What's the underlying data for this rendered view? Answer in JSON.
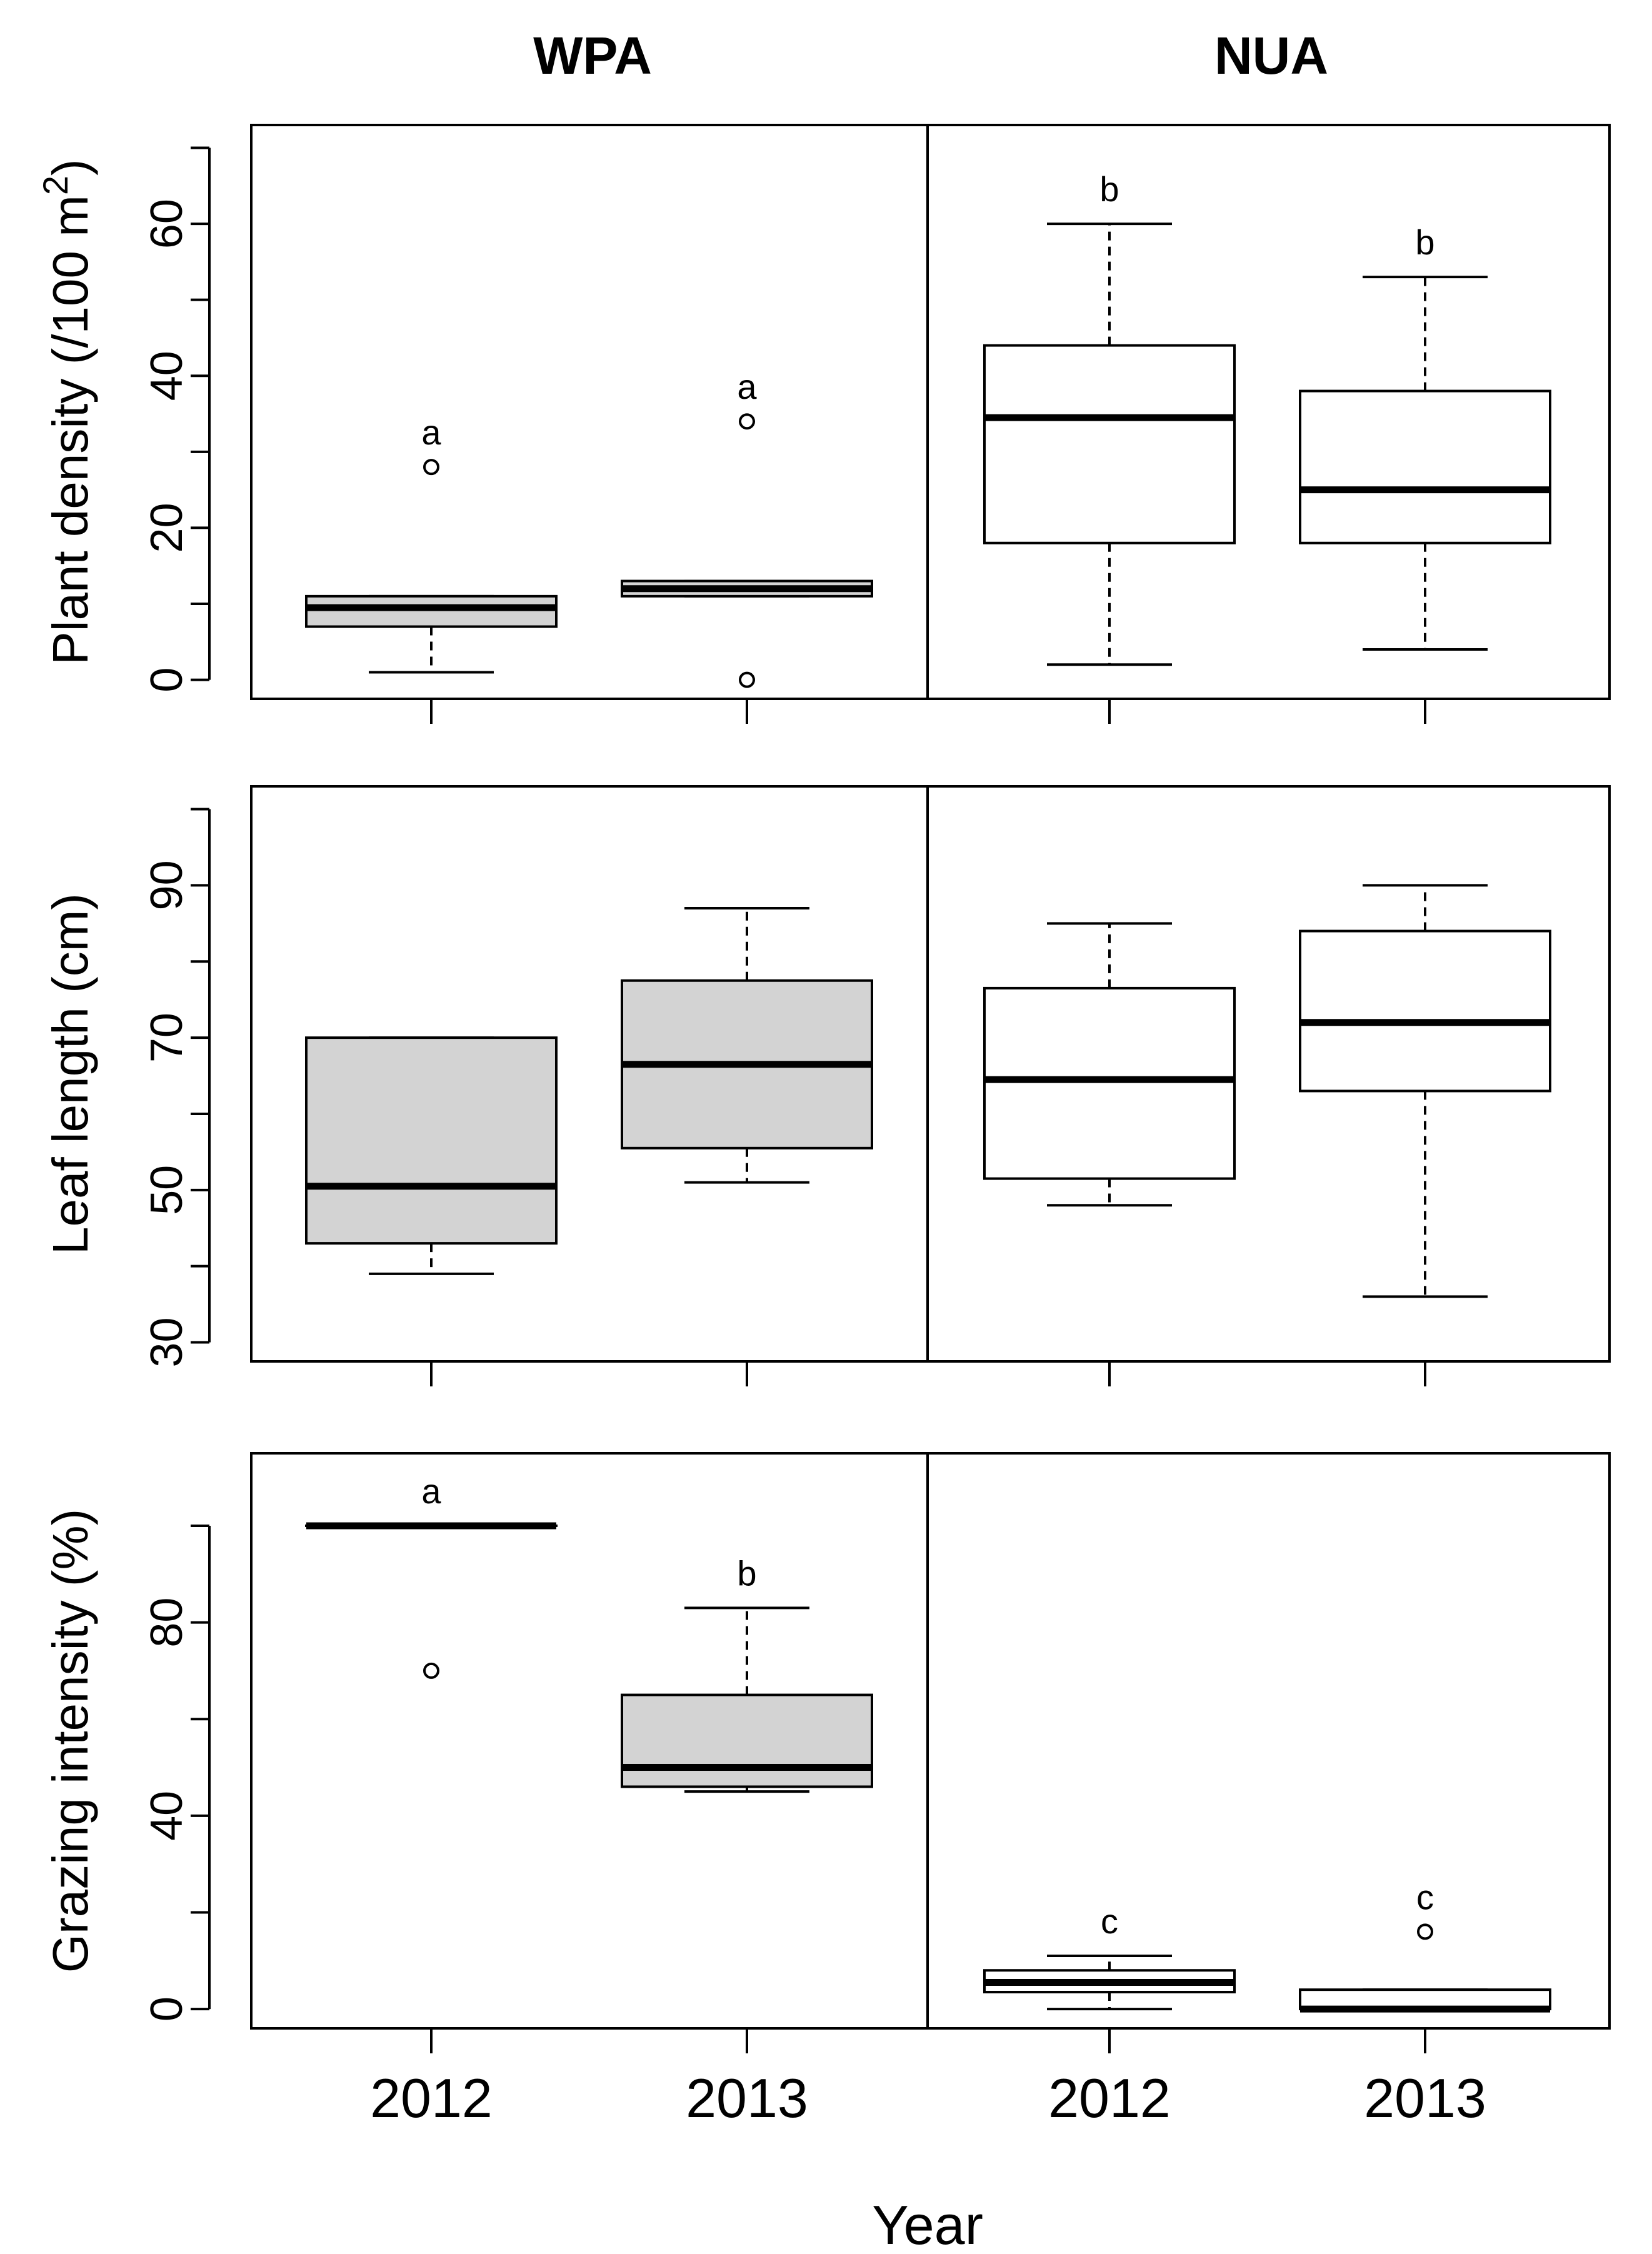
{
  "chart_data": {
    "type": "boxplot",
    "groups": [
      "WPA",
      "NUA"
    ],
    "categories": [
      "2012",
      "2013",
      "2012",
      "2013"
    ],
    "xlabel": "Year",
    "colors": {
      "WPA": "#d3d3d3",
      "NUA": "#ffffff",
      "line": "#000000"
    },
    "panels": [
      {
        "ylabel": "Plant density (/100 m",
        "ylabel_sup": "2",
        "ylabel_close": ")",
        "ylim": [
          -2.5,
          73
        ],
        "yticks": [
          0,
          20,
          40,
          60
        ],
        "yminor": [
          10,
          30,
          50,
          70
        ],
        "boxes": [
          {
            "group": "WPA",
            "year": "2012",
            "min": 1,
            "q1": 7,
            "median": 9.5,
            "q3": 11,
            "max": 11,
            "outliers": [
              28
            ],
            "letter": "a"
          },
          {
            "group": "WPA",
            "year": "2013",
            "min": 11,
            "q1": 11,
            "median": 12,
            "q3": 13,
            "max": 13,
            "outliers": [
              34,
              0
            ],
            "letter": "a"
          },
          {
            "group": "NUA",
            "year": "2012",
            "min": 2,
            "q1": 18,
            "median": 34.5,
            "q3": 44,
            "max": 60,
            "outliers": [],
            "letter": "b"
          },
          {
            "group": "NUA",
            "year": "2013",
            "min": 4,
            "q1": 18,
            "median": 25,
            "q3": 38,
            "max": 53,
            "outliers": [],
            "letter": "b"
          }
        ]
      },
      {
        "ylabel": "Leaf length (cm)",
        "ylim": [
          27.5,
          103
        ],
        "yticks": [
          30,
          50,
          70,
          90
        ],
        "yminor": [
          40,
          60,
          80,
          100
        ],
        "boxes": [
          {
            "group": "WPA",
            "year": "2012",
            "min": 39,
            "q1": 43,
            "median": 50.5,
            "q3": 70,
            "max": 70,
            "outliers": []
          },
          {
            "group": "WPA",
            "year": "2013",
            "min": 51,
            "q1": 55.5,
            "median": 66.5,
            "q3": 77.5,
            "max": 87,
            "outliers": []
          },
          {
            "group": "NUA",
            "year": "2012",
            "min": 48,
            "q1": 51.5,
            "median": 64.5,
            "q3": 76.5,
            "max": 85,
            "outliers": []
          },
          {
            "group": "NUA",
            "year": "2013",
            "min": 36,
            "q1": 63,
            "median": 72,
            "q3": 84,
            "max": 90,
            "outliers": []
          }
        ]
      },
      {
        "ylabel": "Grazing intensity (%)",
        "ylim": [
          -4,
          115
        ],
        "yticks": [
          0,
          40,
          80
        ],
        "yminor": [
          20,
          60,
          100
        ],
        "boxes": [
          {
            "group": "WPA",
            "year": "2012",
            "min": 100,
            "q1": 100,
            "median": 100,
            "q3": 100,
            "max": 100,
            "outliers": [
              70
            ],
            "letter": "a"
          },
          {
            "group": "WPA",
            "year": "2013",
            "min": 45,
            "q1": 46,
            "median": 50,
            "q3": 65,
            "max": 83,
            "outliers": [],
            "letter": "b"
          },
          {
            "group": "NUA",
            "year": "2012",
            "min": 0,
            "q1": 3.5,
            "median": 5.5,
            "q3": 8,
            "max": 11,
            "outliers": [],
            "letter": "c"
          },
          {
            "group": "NUA",
            "year": "2013",
            "min": 0,
            "q1": 0,
            "median": 0,
            "q3": 4,
            "max": 4,
            "outliers": [
              16
            ],
            "letter": "c"
          }
        ]
      }
    ]
  }
}
